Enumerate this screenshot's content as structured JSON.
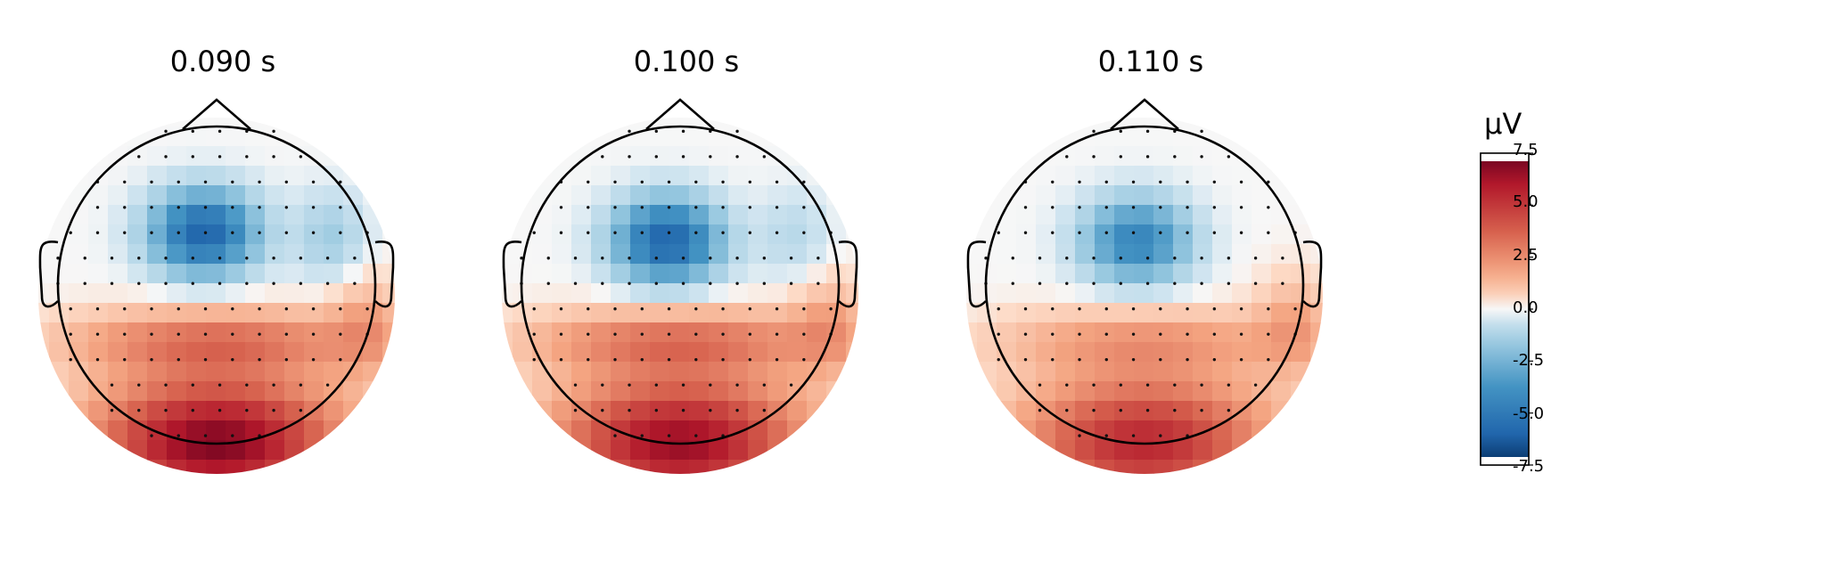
{
  "chart_data": {
    "type": "heatmap",
    "plots": [
      {
        "title": "0.090 s",
        "pattern": {
          "front": -6.0,
          "front_y": 0.33,
          "front_x": -0.08,
          "back": 7.0,
          "mid_warm": 3.0,
          "right_cold": -1.5
        }
      },
      {
        "title": "0.100 s",
        "pattern": {
          "front": -6.0,
          "front_y": 0.28,
          "front_x": -0.08,
          "back": 6.5,
          "mid_warm": 3.0,
          "right_cold": -1.0
        }
      },
      {
        "title": "0.110 s",
        "pattern": {
          "front": -4.5,
          "front_y": 0.28,
          "front_x": -0.05,
          "back": 5.5,
          "mid_warm": 2.0,
          "right_cold": 0.0
        }
      }
    ],
    "colorbar": {
      "unit": "µV",
      "ticks": [
        "7.5",
        "5.0",
        "2.5",
        "0.0",
        "-2.5",
        "-5.0",
        "-7.5"
      ],
      "vmin": -7.5,
      "vmax": 7.5,
      "colormap": "RdBu_r"
    },
    "sensors": "black dots",
    "contours": "dashed (negative) / solid (positive)"
  }
}
